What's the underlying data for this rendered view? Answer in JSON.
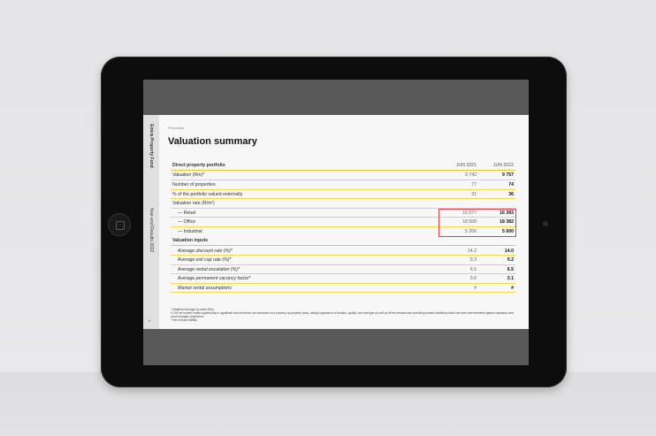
{
  "sidebar": {
    "company": "Emira Property Fund",
    "report": "Year-end Results 2022",
    "page": "9"
  },
  "slide": {
    "breadcrumb": "Financials",
    "title": "Valuation summary"
  },
  "table": {
    "header": {
      "label": "Direct property portfolio",
      "col1": "JUN 2021",
      "col2": "JUN 2022"
    },
    "rows": [
      {
        "label": "Valuation (Rm)*",
        "a": "9 742",
        "b": "9 757"
      },
      {
        "label": "Number of properties",
        "a": "77",
        "b": "74"
      },
      {
        "label": "% of the portfolio valued externally",
        "a": "31",
        "b": "36"
      },
      {
        "label": "Valuation rate (R/m²)",
        "a": "",
        "b": ""
      },
      {
        "label": "— Retail",
        "a": "15 577",
        "b": "16 393"
      },
      {
        "label": "— Office",
        "a": "18 568",
        "b": "18 382"
      },
      {
        "label": "— Industrial",
        "a": "5 206",
        "b": "5 600"
      }
    ],
    "section2": "Valuation inputs",
    "rows2": [
      {
        "label": "Average discount rate (%)*",
        "a": "14.2",
        "b": "14.0"
      },
      {
        "label": "Average exit cap rate (%)*",
        "a": "9.3",
        "b": "9.2"
      },
      {
        "label": "Average rental escalation (%)*",
        "a": "6.5",
        "b": "6.5"
      },
      {
        "label": "Average permanent vacancy factor*",
        "a": "3.6",
        "b": "3.1"
      },
      {
        "label": "Market rental assumptions",
        "a": "#",
        "b": "#"
      }
    ]
  },
  "footnotes": [
    "*  Weighted average by value (Rm).",
    "#  The net market rentals applied play a significant role and these are assessed on a property-by-property basis, taking cognisance of location, quality, size and type as well as all the relevant and prevailing market conditions which are then benchmarked against valuations and asset manager projections.",
    "^  Net of lease liability."
  ],
  "colors": {
    "highlight_box": "#e0404e",
    "row_rule": "#f0d94a"
  }
}
